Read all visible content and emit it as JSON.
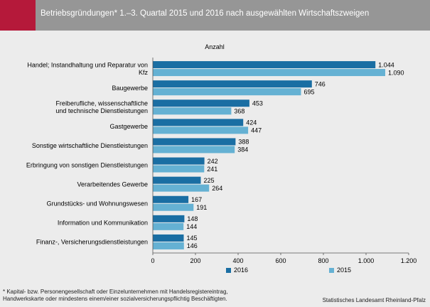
{
  "header": {
    "title": "Betriebsgründungen* 1.–3. Quartal 2015 und 2016  nach ausgewählten Wirtschaftszweigen"
  },
  "footer": {
    "footnote_line1": "* Kapital- bzw. Personengesellschaft oder Einzelunternehmen mit  Handelsregistereintrag,",
    "footnote_line2": "Handwerkskarte oder mindestens einem/einer sozialversicherungspflichtig Beschäftigten.",
    "source": "Statistisches Landesamt Rheinland-Pfalz"
  },
  "colors": {
    "header_bg": "#969696",
    "header_accent": "#b5193a",
    "series_2016": "#1a6ea3",
    "series_2015": "#65b1d3"
  },
  "chart_data": {
    "type": "bar",
    "orientation": "horizontal",
    "title": "",
    "unit_label": "Anzahl",
    "categories": [
      [
        "Handel; Instandhaltung und Reparatur von",
        "Kfz"
      ],
      [
        "Baugewerbe"
      ],
      [
        "Freiberufliche, wissenschaftliche",
        "und technische Dienstleistungen"
      ],
      [
        "Gastgewerbe"
      ],
      [
        "Sonstige wirtschaftliche Dienstleistungen"
      ],
      [
        "Erbringung von sonstigen Dienstleistungen"
      ],
      [
        "Verarbeitendes Gewerbe"
      ],
      [
        "Grundstücks- und Wohnungswesen"
      ],
      [
        "Information und Kommunikation"
      ],
      [
        "Finanz-, Versicherungsdienstleistungen"
      ]
    ],
    "series": [
      {
        "name": "2016",
        "color": "#1a6ea3",
        "values": [
          1044,
          746,
          453,
          424,
          388,
          242,
          225,
          167,
          148,
          145
        ],
        "labels": [
          "1.044",
          "746",
          "453",
          "424",
          "388",
          "242",
          "225",
          "167",
          "148",
          "145"
        ]
      },
      {
        "name": "2015",
        "color": "#65b1d3",
        "values": [
          1090,
          695,
          368,
          447,
          384,
          241,
          264,
          191,
          144,
          146
        ],
        "labels": [
          "1.090",
          "695",
          "368",
          "447",
          "384",
          "241",
          "264",
          "191",
          "144",
          "146"
        ]
      }
    ],
    "xlim": [
      0,
      1200
    ],
    "xticks": [
      0,
      200,
      400,
      600,
      800,
      1000,
      1200
    ],
    "xtick_labels": [
      "0",
      "200",
      "400",
      "600",
      "800",
      "1.000",
      "1.200"
    ],
    "grid": false,
    "legend_position": "bottom"
  }
}
